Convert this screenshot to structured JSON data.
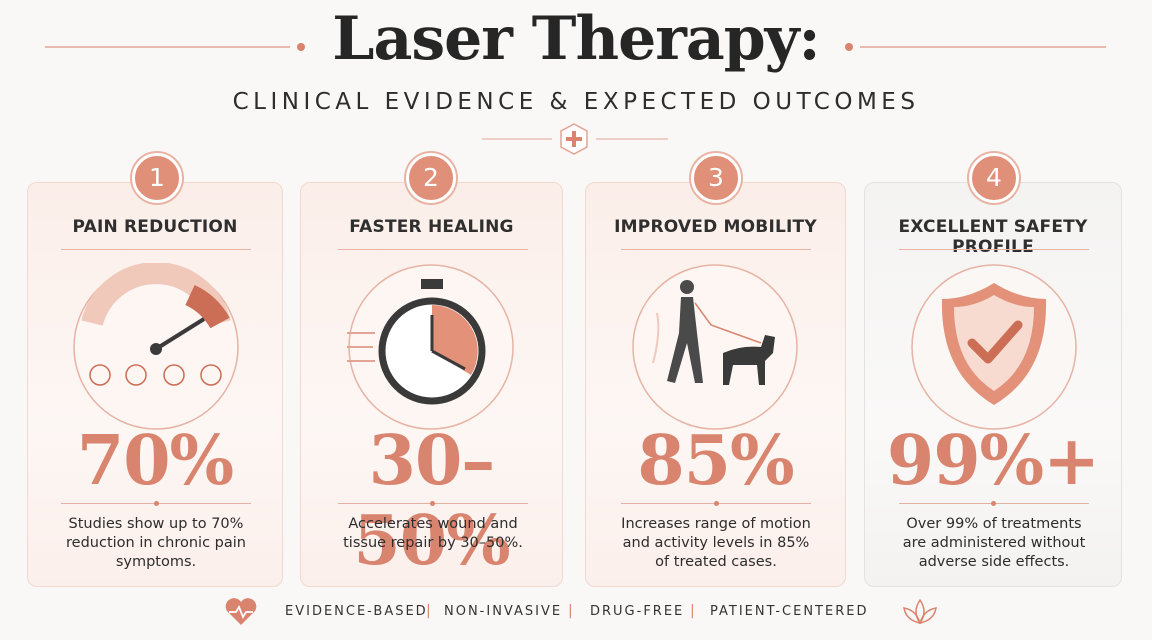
{
  "header": {
    "title": "Laser Therapy:",
    "subtitle": "CLINICAL EVIDENCE & EXPECTED OUTCOMES"
  },
  "cards": [
    {
      "number": "1",
      "title": "PAIN REDUCTION",
      "stat": "70%",
      "description": "Studies show up to 70% reduction in chronic pain symptoms."
    },
    {
      "number": "2",
      "title": "FASTER HEALING",
      "stat": "30–50%",
      "description": "Accelerates wound and tissue repair by 30–50%."
    },
    {
      "number": "3",
      "title": "IMPROVED MOBILITY",
      "stat": "85%",
      "description": "Increases range of motion and activity levels in 85% of treated cases."
    },
    {
      "number": "4",
      "title": "EXCELLENT SAFETY PROFILE",
      "stat": "99%+",
      "description": "Over 99% of treatments are administered without adverse side effects."
    }
  ],
  "footer": {
    "items": [
      "EVIDENCE-BASED",
      "NON-INVASIVE",
      "DRUG-FREE",
      "PATIENT-CENTERED"
    ]
  }
}
